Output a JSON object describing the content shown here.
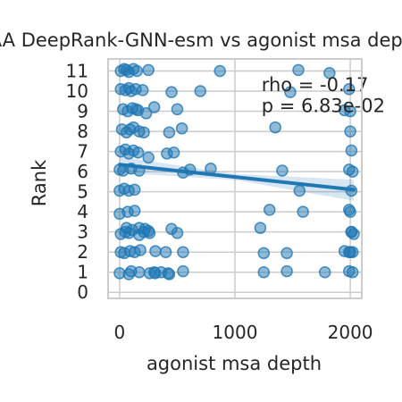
{
  "chart_data": {
    "type": "scatter",
    "title": "AA DeepRank-GNN-esm vs agonist msa depth",
    "xlabel": "agonist msa depth",
    "ylabel": "Rank",
    "xlim": [
      -100,
      2100
    ],
    "ylim": [
      -0.3,
      11.6
    ],
    "xticks": [
      0,
      1000,
      2000
    ],
    "yticks": [
      0,
      1,
      2,
      3,
      4,
      5,
      6,
      7,
      8,
      9,
      10,
      11
    ],
    "grid": true,
    "colors": {
      "points": "#1f77b4",
      "line": "#1f77b4",
      "ci": "#1f77b4",
      "grid": "#cccccc",
      "frame": "#cccccc"
    },
    "annotations": [
      {
        "id": "rho",
        "text": "rho = -0.17",
        "x": 1230,
        "y": 10.0
      },
      {
        "id": "pval",
        "text": "p = 6.83e-02",
        "x": 1230,
        "y": 8.95
      }
    ],
    "regression": {
      "x": [
        0,
        2030
      ],
      "y": [
        6.35,
        5.1
      ],
      "ci_upper": [
        6.75,
        5.6
      ],
      "ci_lower": [
        5.95,
        4.55
      ],
      "ci_mid_width": 0.3
    },
    "points": {
      "x": [
        10,
        40,
        60,
        80,
        120,
        150,
        250,
        870,
        1550,
        1820,
        10,
        50,
        80,
        100,
        140,
        200,
        450,
        700,
        1480,
        1990,
        30,
        70,
        110,
        140,
        160,
        230,
        300,
        500,
        1950,
        2000,
        20,
        60,
        90,
        120,
        170,
        210,
        430,
        540,
        1350,
        2000,
        10,
        50,
        80,
        120,
        160,
        250,
        410,
        470,
        2010,
        0,
        30,
        100,
        170,
        550,
        610,
        790,
        1410,
        1990,
        2020,
        0,
        40,
        80,
        130,
        1560,
        2010,
        0,
        70,
        130,
        1300,
        1590,
        1990,
        2000,
        10,
        50,
        80,
        110,
        170,
        210,
        250,
        500,
        2010,
        2030,
        10,
        40,
        90,
        130,
        180,
        310,
        400,
        550,
        1250,
        1450,
        1950,
        1990,
        2000,
        2020,
        0,
        260,
        300,
        360,
        420,
        550,
        1250,
        1450,
        1780,
        1990,
        2020,
        60,
        170,
        220,
        260,
        450,
        1220,
        2010,
        80,
        100,
        170,
        310,
        430
      ],
      "y": [
        11.0,
        11.1,
        11.05,
        10.95,
        11.1,
        11.0,
        11.05,
        11.0,
        11.05,
        10.9,
        10.1,
        10.05,
        10.15,
        10.0,
        10.1,
        10.05,
        9.95,
        10.0,
        9.95,
        10.1,
        9.1,
        9.0,
        9.15,
        9.1,
        9.05,
        8.9,
        9.2,
        9.1,
        9.05,
        9.0,
        8.1,
        7.95,
        8.1,
        8.2,
        8.0,
        7.95,
        7.95,
        8.15,
        8.2,
        8.0,
        7.0,
        7.1,
        6.9,
        7.05,
        6.95,
        6.7,
        6.9,
        6.95,
        7.05,
        6.1,
        6.05,
        6.15,
        6.05,
        5.95,
        6.1,
        6.15,
        6.05,
        6.1,
        6.0,
        5.05,
        5.15,
        5.05,
        5.1,
        5.05,
        5.05,
        3.9,
        4.0,
        4.05,
        4.1,
        4.0,
        4.1,
        4.0,
        2.9,
        3.0,
        2.95,
        3.1,
        2.85,
        3.0,
        3.05,
        2.95,
        3.0,
        2.9,
        2.0,
        1.95,
        2.05,
        2.0,
        2.1,
        2.05,
        2.0,
        2.0,
        1.95,
        1.95,
        2.05,
        2.0,
        2.0,
        2.0,
        0.95,
        0.95,
        1.0,
        1.0,
        0.95,
        1.05,
        1.0,
        1.05,
        1.0,
        1.05,
        1.0,
        3.2,
        3.2,
        3.15,
        2.95,
        3.15,
        3.2,
        3.0,
        0.9,
        1.05,
        1.0,
        0.95,
        0.9
      ]
    }
  }
}
